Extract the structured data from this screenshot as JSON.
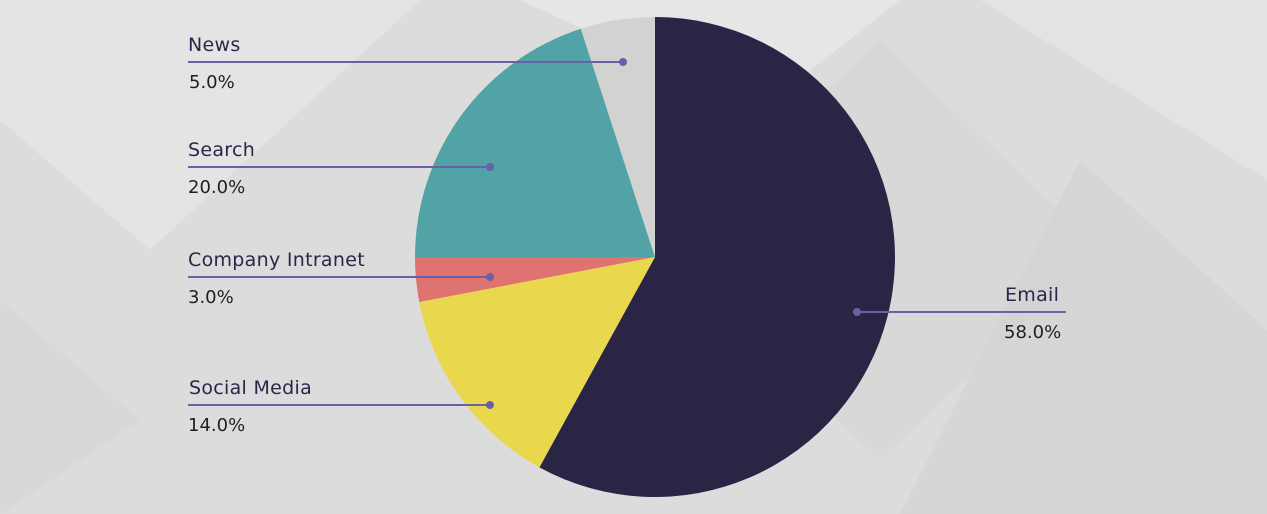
{
  "chart_data": {
    "type": "pie",
    "title": "",
    "categories": [
      "Email",
      "Social Media",
      "Company Intranet",
      "Search",
      "News"
    ],
    "values": [
      58.0,
      14.0,
      3.0,
      20.0,
      5.0
    ],
    "value_labels": [
      "58.0%",
      "14.0%",
      "3.0%",
      "20.0%",
      "5.0%"
    ],
    "colors": [
      "#2a2545",
      "#e9d84e",
      "#df7372",
      "#52a3a5",
      "#d2d2d2"
    ],
    "start_angle_deg": 0,
    "direction": "clockwise",
    "legend": "callout-labels"
  },
  "labels": {
    "news": {
      "name": "News",
      "value": "5.0%"
    },
    "search": {
      "name": "Search",
      "value": "20.0%"
    },
    "intranet": {
      "name": "Company Intranet",
      "value": "3.0%"
    },
    "social": {
      "name": "Social Media",
      "value": "14.0%"
    },
    "email": {
      "name": "Email",
      "value": "58.0%"
    }
  },
  "style": {
    "leader_color": "#6b5fa8",
    "background": "#dedede"
  }
}
